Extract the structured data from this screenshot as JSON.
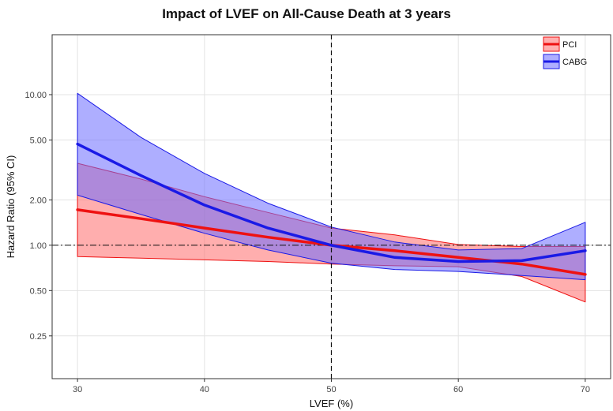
{
  "chart_data": {
    "type": "line",
    "title": "Impact of LVEF on All-Cause Death at 3 years",
    "xlabel": "LVEF (%)",
    "ylabel": "Hazard Ratio (95% CI)",
    "x_ticks": [
      30,
      40,
      50,
      60,
      70
    ],
    "y_scale": "log",
    "y_ticks": [
      0.25,
      0.5,
      1.0,
      2.0,
      5.0,
      10.0
    ],
    "y_tick_labels": [
      "0.25",
      "0.50",
      "1.00",
      "2.00",
      "5.00",
      "10.00"
    ],
    "xlim": [
      28,
      72
    ],
    "ylim": [
      0.13,
      25
    ],
    "grid": true,
    "legend_position": "top-right",
    "reference_lines": [
      {
        "axis": "x",
        "value": 50,
        "style": "dashed"
      },
      {
        "axis": "y",
        "value": 1.0,
        "style": "dash-dot"
      }
    ],
    "series": [
      {
        "name": "PCI",
        "color": "#ee1111",
        "fill": "#ff6b6b",
        "x": [
          30,
          35,
          40,
          45,
          50,
          55,
          60,
          65,
          70
        ],
        "y": [
          1.72,
          1.5,
          1.3,
          1.13,
          1.0,
          0.92,
          0.83,
          0.75,
          0.64
        ],
        "lower": [
          0.84,
          0.82,
          0.8,
          0.78,
          0.75,
          0.73,
          0.72,
          0.62,
          0.42
        ],
        "upper": [
          3.5,
          2.75,
          2.1,
          1.65,
          1.3,
          1.17,
          1.01,
          0.98,
          0.98
        ]
      },
      {
        "name": "CABG",
        "color": "#1a1ae6",
        "fill": "#6b6bff",
        "x": [
          30,
          35,
          40,
          45,
          50,
          55,
          60,
          65,
          70
        ],
        "y": [
          4.7,
          2.9,
          1.85,
          1.3,
          1.0,
          0.83,
          0.78,
          0.79,
          0.92
        ],
        "lower": [
          2.15,
          1.6,
          1.2,
          0.93,
          0.76,
          0.69,
          0.67,
          0.63,
          0.59
        ],
        "upper": [
          10.2,
          5.2,
          3.0,
          1.9,
          1.32,
          1.05,
          0.93,
          0.95,
          1.42
        ]
      }
    ]
  }
}
